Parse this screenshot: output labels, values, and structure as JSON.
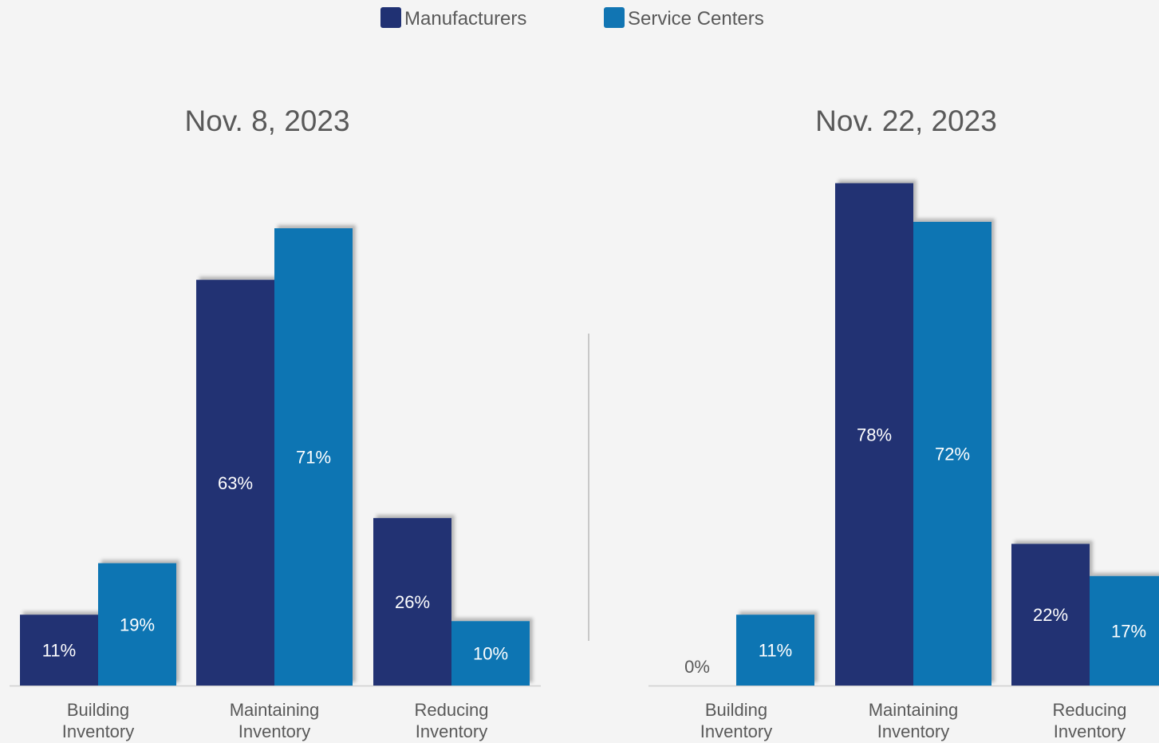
{
  "legend": {
    "placement": "top-center",
    "items": [
      {
        "label": "Manufacturers",
        "color": "#203173"
      },
      {
        "label": "Service Centers",
        "color": "#1175b3"
      }
    ]
  },
  "divider_color": "#c8c8c8",
  "chart_data": [
    {
      "type": "bar",
      "title": "Nov. 8, 2023",
      "categories": [
        "Building\nInventory",
        "Maintaining\nInventory",
        "Reducing\nInventory"
      ],
      "series": [
        {
          "name": "Manufacturers",
          "values": [
            11,
            63,
            26
          ],
          "labels": [
            "11%",
            "63%",
            "26%"
          ]
        },
        {
          "name": "Service Centers",
          "values": [
            19,
            71,
            10
          ],
          "labels": [
            "19%",
            "71%",
            "10%"
          ]
        }
      ],
      "unit": "%",
      "grid": false,
      "ylim": [
        0,
        85
      ]
    },
    {
      "type": "bar",
      "title": "Nov. 22, 2023",
      "categories": [
        "Building\nInventory",
        "Maintaining\nInventory",
        "Reducing\nInventory"
      ],
      "series": [
        {
          "name": "Manufacturers",
          "values": [
            0,
            78,
            22
          ],
          "labels": [
            "0%",
            "78%",
            "22%"
          ]
        },
        {
          "name": "Service Centers",
          "values": [
            11,
            72,
            17
          ],
          "labels": [
            "11%",
            "72%",
            "17%"
          ]
        }
      ],
      "unit": "%",
      "grid": false,
      "ylim": [
        0,
        85
      ]
    }
  ]
}
